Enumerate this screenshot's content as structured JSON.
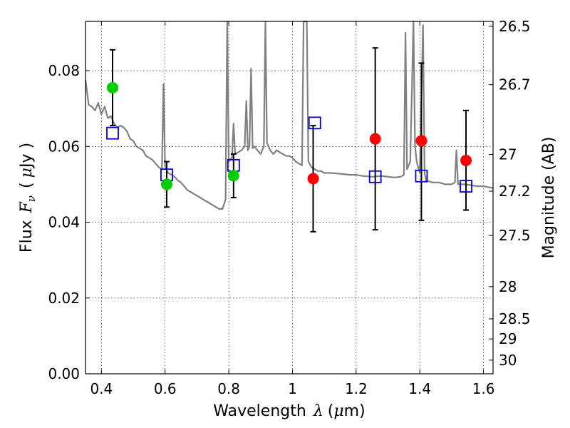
{
  "chart_data": {
    "type": "scatter",
    "xlabel_text": "Wavelength",
    "xlabel_symbol": "λ",
    "xlabel_unit_open": "(",
    "xlabel_unit_mu": "μ",
    "xlabel_unit_rest": "m)",
    "ylabel_text": "Flux",
    "ylabel_symbol": "F",
    "ylabel_sub": "ν",
    "ylabel_unit_open": "(",
    "ylabel_unit_mu": "μ",
    "ylabel_unit_rest": "Jy )",
    "y2label": "Magnitude (AB)",
    "xlim": [
      0.35,
      1.63
    ],
    "ylim": [
      0.0,
      0.093
    ],
    "xticks": [
      0.4,
      0.6,
      0.8,
      1.0,
      1.2,
      1.4,
      1.6
    ],
    "xtick_labels": [
      "0.4",
      "0.6",
      "0.8",
      "1",
      "1.2",
      "1.4",
      "1.6"
    ],
    "yticks": [
      0.0,
      0.02,
      0.04,
      0.06,
      0.08
    ],
    "ytick_labels": [
      "0.00",
      "0.02",
      "0.04",
      "0.06",
      "0.08"
    ],
    "y2_ticks": [
      {
        "label": "26.5",
        "flux": 0.0917
      },
      {
        "label": "26.7",
        "flux": 0.0763
      },
      {
        "label": "27",
        "flux": 0.0579
      },
      {
        "label": "27.2",
        "flux": 0.0482
      },
      {
        "label": "27.5",
        "flux": 0.0365
      },
      {
        "label": "28",
        "flux": 0.023
      },
      {
        "label": "28.5",
        "flux": 0.0145
      },
      {
        "label": "29",
        "flux": 0.0092
      },
      {
        "label": "30",
        "flux": 0.0036
      }
    ],
    "grid": true,
    "series": [
      {
        "kind": "model-spectrum",
        "color": "#808080",
        "points": [
          [
            0.35,
            0.0775
          ],
          [
            0.36,
            0.071
          ],
          [
            0.37,
            0.0705
          ],
          [
            0.38,
            0.0695
          ],
          [
            0.39,
            0.0715
          ],
          [
            0.4,
            0.0685
          ],
          [
            0.41,
            0.0705
          ],
          [
            0.42,
            0.0675
          ],
          [
            0.43,
            0.068
          ],
          [
            0.44,
            0.066
          ],
          [
            0.45,
            0.065
          ],
          [
            0.46,
            0.0655
          ],
          [
            0.47,
            0.065
          ],
          [
            0.48,
            0.064
          ],
          [
            0.49,
            0.062
          ],
          [
            0.5,
            0.0615
          ],
          [
            0.51,
            0.06
          ],
          [
            0.52,
            0.0595
          ],
          [
            0.53,
            0.059
          ],
          [
            0.54,
            0.0575
          ],
          [
            0.55,
            0.057
          ],
          [
            0.56,
            0.0565
          ],
          [
            0.57,
            0.0555
          ],
          [
            0.58,
            0.0545
          ],
          [
            0.59,
            0.054
          ],
          [
            0.595,
            0.0765
          ],
          [
            0.6,
            0.0545
          ],
          [
            0.61,
            0.053
          ],
          [
            0.62,
            0.0525
          ],
          [
            0.63,
            0.052
          ],
          [
            0.64,
            0.051
          ],
          [
            0.65,
            0.0505
          ],
          [
            0.66,
            0.0495
          ],
          [
            0.67,
            0.0485
          ],
          [
            0.68,
            0.048
          ],
          [
            0.69,
            0.0475
          ],
          [
            0.7,
            0.047
          ],
          [
            0.71,
            0.0465
          ],
          [
            0.72,
            0.046
          ],
          [
            0.73,
            0.0455
          ],
          [
            0.74,
            0.045
          ],
          [
            0.75,
            0.0445
          ],
          [
            0.76,
            0.044
          ],
          [
            0.77,
            0.0435
          ],
          [
            0.78,
            0.0435
          ],
          [
            0.79,
            0.046
          ],
          [
            0.795,
            0.093
          ],
          [
            0.8,
            0.056
          ],
          [
            0.81,
            0.057
          ],
          [
            0.815,
            0.066
          ],
          [
            0.82,
            0.058
          ],
          [
            0.83,
            0.0585
          ],
          [
            0.84,
            0.059
          ],
          [
            0.85,
            0.06
          ],
          [
            0.855,
            0.072
          ],
          [
            0.86,
            0.059
          ],
          [
            0.865,
            0.06
          ],
          [
            0.87,
            0.0805
          ],
          [
            0.875,
            0.0595
          ],
          [
            0.88,
            0.06
          ],
          [
            0.89,
            0.059
          ],
          [
            0.9,
            0.058
          ],
          [
            0.91,
            0.06
          ],
          [
            0.915,
            0.093
          ],
          [
            0.92,
            0.061
          ],
          [
            0.93,
            0.059
          ],
          [
            0.94,
            0.058
          ],
          [
            0.95,
            0.059
          ],
          [
            0.96,
            0.0585
          ],
          [
            0.97,
            0.058
          ],
          [
            0.98,
            0.0575
          ],
          [
            0.99,
            0.0575
          ],
          [
            1.0,
            0.057
          ],
          [
            1.01,
            0.056
          ],
          [
            1.02,
            0.0555
          ],
          [
            1.03,
            0.055
          ],
          [
            1.035,
            0.093
          ],
          [
            1.045,
            0.093
          ],
          [
            1.05,
            0.056
          ],
          [
            1.06,
            0.0545
          ],
          [
            1.07,
            0.054
          ],
          [
            1.08,
            0.0535
          ],
          [
            1.09,
            0.0535
          ],
          [
            1.1,
            0.053
          ],
          [
            1.12,
            0.053
          ],
          [
            1.15,
            0.0528
          ],
          [
            1.18,
            0.0525
          ],
          [
            1.2,
            0.0525
          ],
          [
            1.22,
            0.0522
          ],
          [
            1.25,
            0.052
          ],
          [
            1.28,
            0.0522
          ],
          [
            1.3,
            0.052
          ],
          [
            1.32,
            0.0518
          ],
          [
            1.34,
            0.052
          ],
          [
            1.35,
            0.0525
          ],
          [
            1.355,
            0.09
          ],
          [
            1.36,
            0.054
          ],
          [
            1.37,
            0.056
          ],
          [
            1.38,
            0.093
          ],
          [
            1.385,
            0.06
          ],
          [
            1.39,
            0.056
          ],
          [
            1.4,
            0.053
          ],
          [
            1.41,
            0.092
          ],
          [
            1.415,
            0.053
          ],
          [
            1.42,
            0.051
          ],
          [
            1.44,
            0.0505
          ],
          [
            1.46,
            0.0505
          ],
          [
            1.48,
            0.05
          ],
          [
            1.5,
            0.05
          ],
          [
            1.51,
            0.0505
          ],
          [
            1.515,
            0.059
          ],
          [
            1.52,
            0.05
          ],
          [
            1.54,
            0.05
          ],
          [
            1.56,
            0.0498
          ],
          [
            1.58,
            0.0495
          ],
          [
            1.6,
            0.0495
          ],
          [
            1.63,
            0.049
          ]
        ]
      },
      {
        "kind": "measured-optical",
        "color": "#00cc00",
        "points": [
          [
            0.435,
            0.0755
          ],
          [
            0.605,
            0.05
          ],
          [
            0.815,
            0.0523
          ]
        ],
        "errors": [
          [
            0.435,
            0.0655,
            0.0855
          ],
          [
            0.605,
            0.044,
            0.056
          ],
          [
            0.815,
            0.0465,
            0.058
          ]
        ]
      },
      {
        "kind": "measured-infrared",
        "color": "#ff0000",
        "points": [
          [
            1.065,
            0.0515
          ],
          [
            1.26,
            0.062
          ],
          [
            1.405,
            0.0615
          ],
          [
            1.545,
            0.0563
          ]
        ],
        "errors": [
          [
            1.065,
            0.0375,
            0.0655
          ],
          [
            1.26,
            0.038,
            0.086
          ],
          [
            1.405,
            0.0405,
            0.082
          ],
          [
            1.545,
            0.0432,
            0.0695
          ]
        ]
      },
      {
        "kind": "model-photometry",
        "color": "#0000cc",
        "points": [
          [
            0.435,
            0.0635
          ],
          [
            0.605,
            0.0525
          ],
          [
            0.815,
            0.055
          ],
          [
            1.07,
            0.0662
          ],
          [
            1.26,
            0.052
          ],
          [
            1.405,
            0.0522
          ],
          [
            1.545,
            0.0495
          ]
        ]
      }
    ]
  }
}
